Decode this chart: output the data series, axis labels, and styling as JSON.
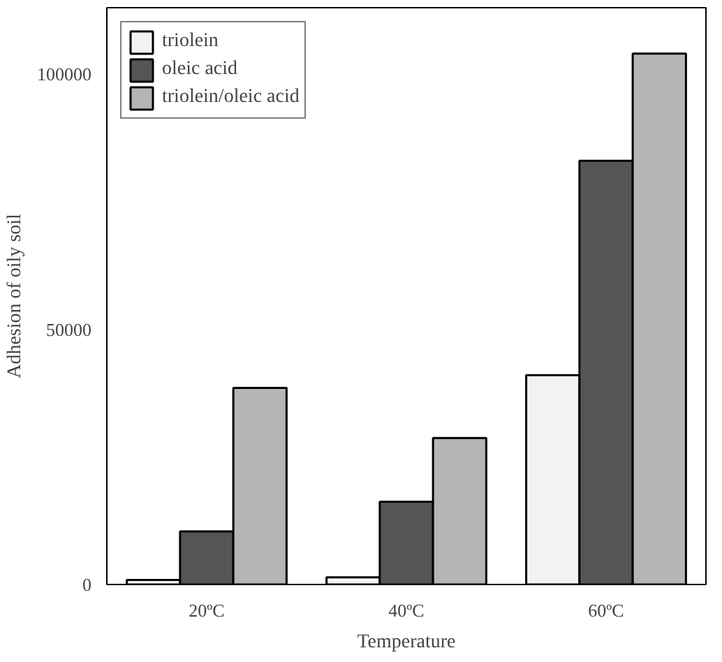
{
  "chart_data": {
    "type": "bar",
    "xlabel": "Temperature",
    "ylabel": "Adhesion of oily soil",
    "categories": [
      "20ºC",
      "40ºC",
      "60ºC"
    ],
    "series": [
      {
        "name": "triolein",
        "color": "#f2f2f2",
        "values": [
          900,
          1400,
          41000
        ]
      },
      {
        "name": "oleic acid",
        "color": "#555555",
        "values": [
          10400,
          16200,
          83000
        ]
      },
      {
        "name": "triolein/oleic acid",
        "color": "#b5b5b5",
        "values": [
          38500,
          28700,
          104000
        ]
      }
    ],
    "ylim": [
      0,
      113000
    ],
    "yticks": [
      0,
      50000,
      100000
    ],
    "grid": false,
    "legend": "top left"
  }
}
